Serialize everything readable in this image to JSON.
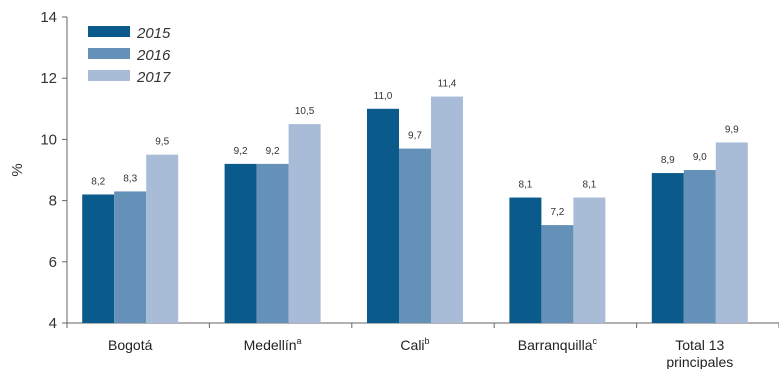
{
  "chart_data": {
    "type": "bar",
    "categories": [
      {
        "label": "Bogotá",
        "sup": "",
        "label2": ""
      },
      {
        "label": "Medellín",
        "sup": "a",
        "label2": ""
      },
      {
        "label": "Cali",
        "sup": "b",
        "label2": ""
      },
      {
        "label": "Barranquilla",
        "sup": "c",
        "label2": ""
      },
      {
        "label": "Total 13",
        "sup": "",
        "label2": "principales"
      }
    ],
    "series": [
      {
        "name": "2015",
        "color": "#0b5a8c",
        "values": [
          8.2,
          9.2,
          11.0,
          8.1,
          8.9
        ],
        "labels": [
          "8,2",
          "9,2",
          "11,0",
          "8,1",
          "8,9"
        ]
      },
      {
        "name": "2016",
        "color": "#6590b8",
        "values": [
          8.3,
          9.2,
          9.7,
          7.2,
          9.0
        ],
        "labels": [
          "8,3",
          "9,2",
          "9,7",
          "7,2",
          "9,0"
        ]
      },
      {
        "name": "2017",
        "color": "#a8bcd8",
        "values": [
          9.5,
          10.5,
          11.4,
          8.1,
          9.9
        ],
        "labels": [
          "9,5",
          "10,5",
          "11,4",
          "8,1",
          "9,9"
        ]
      }
    ],
    "ylabel": "%",
    "ylim": [
      4,
      14
    ],
    "yticks": [
      4,
      6,
      8,
      10,
      12,
      14
    ],
    "grid": false,
    "legend_position": "top-left"
  }
}
